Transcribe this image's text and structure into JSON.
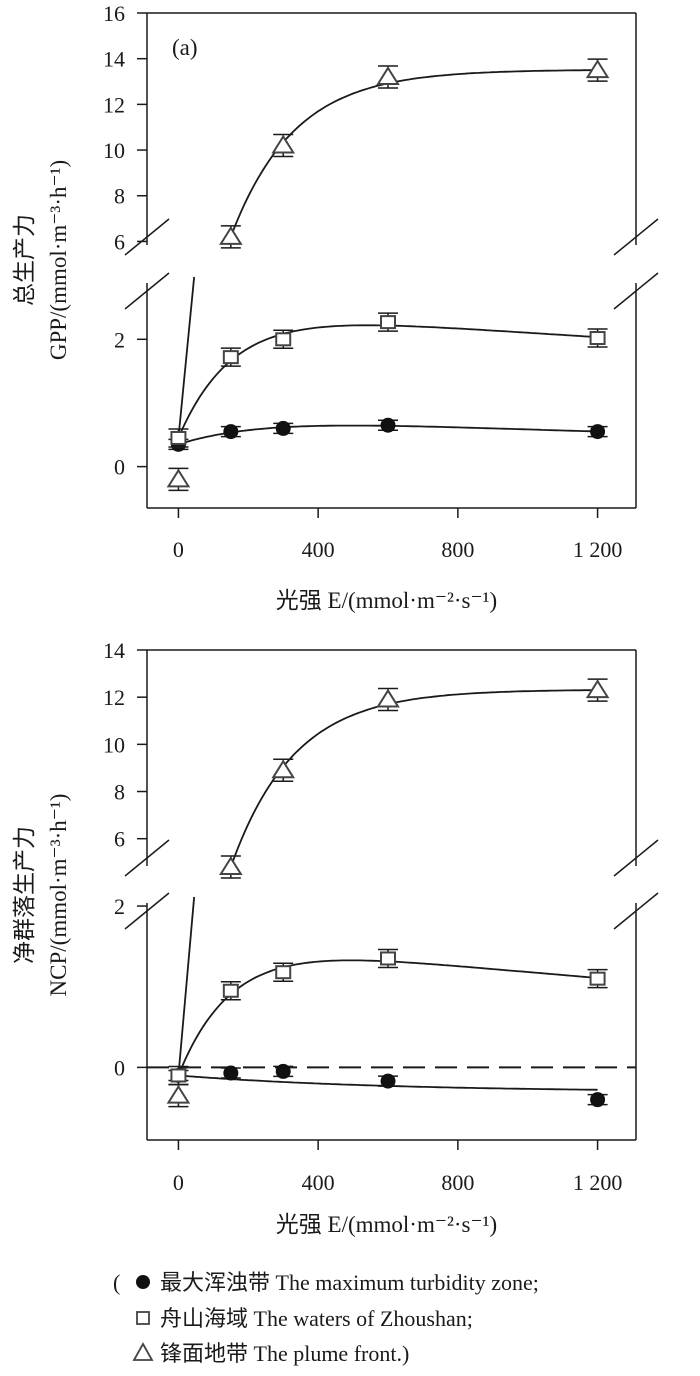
{
  "chart_data": [
    {
      "type": "scatter",
      "panel_label": "(a)",
      "xlabel": "光强 E/(mmol·m⁻²·s⁻¹)",
      "ylabel_cn": "总生产力",
      "ylabel_en": "GPP/(mmol·m⁻³·h⁻¹)",
      "x_ticks": [
        "0",
        "400",
        "800",
        "1 200"
      ],
      "y_ticks_upper": [
        "6",
        "8",
        "10",
        "12",
        "14",
        "16"
      ],
      "y_ticks_lower": [
        "0",
        "2"
      ],
      "xlim": [
        -90,
        1310
      ],
      "ylim_lower": [
        -0.65,
        2.9
      ],
      "ylim_upper": [
        5.8,
        16
      ],
      "axis_break": true,
      "dashed_zero_line": false,
      "series": [
        {
          "key": "turbidity",
          "marker": "filled-circle",
          "x": [
            0,
            150,
            300,
            600,
            1200
          ],
          "y": [
            0.35,
            0.55,
            0.6,
            0.65,
            0.55
          ]
        },
        {
          "key": "zhoushan",
          "marker": "open-square",
          "x": [
            0,
            150,
            300,
            600,
            1200
          ],
          "y": [
            0.45,
            1.72,
            2.0,
            2.27,
            2.02
          ]
        },
        {
          "key": "plume",
          "marker": "open-triangle",
          "x": [
            0,
            150,
            300,
            600,
            1200
          ],
          "y": [
            -0.2,
            6.2,
            10.2,
            13.2,
            13.5
          ]
        }
      ]
    },
    {
      "type": "scatter",
      "xlabel": "光强 E/(mmol·m⁻²·s⁻¹)",
      "ylabel_cn": "净群落生产力",
      "ylabel_en": "NCP/(mmol·m⁻³·h⁻¹)",
      "x_ticks": [
        "0",
        "400",
        "800",
        "1 200"
      ],
      "y_ticks_upper": [
        "6",
        "8",
        "10",
        "12",
        "14"
      ],
      "y_ticks_lower": [
        "0",
        "2"
      ],
      "xlim": [
        -90,
        1310
      ],
      "ylim_lower": [
        -0.9,
        2.05
      ],
      "ylim_upper": [
        4.8,
        14
      ],
      "axis_break": true,
      "dashed_zero_line": true,
      "series": [
        {
          "key": "turbidity",
          "marker": "filled-circle",
          "x": [
            0,
            150,
            300,
            600,
            1200
          ],
          "y": [
            -0.1,
            -0.07,
            -0.05,
            -0.17,
            -0.4
          ]
        },
        {
          "key": "zhoushan",
          "marker": "open-square",
          "x": [
            0,
            150,
            300,
            600,
            1200
          ],
          "y": [
            -0.1,
            0.95,
            1.18,
            1.35,
            1.1
          ]
        },
        {
          "key": "plume",
          "marker": "open-triangle",
          "x": [
            0,
            150,
            300,
            600,
            1200
          ],
          "y": [
            -0.35,
            4.8,
            8.9,
            11.9,
            12.3
          ]
        }
      ]
    }
  ],
  "legend": {
    "open_paren": "(",
    "items": [
      {
        "key": "turbidity",
        "marker": "filled-circle",
        "label": "最大浑浊带 The maximum turbidity zone;"
      },
      {
        "key": "zhoushan",
        "marker": "open-square",
        "label": "舟山海域 The waters of Zhoushan;"
      },
      {
        "key": "plume",
        "marker": "open-triangle",
        "label": "锋面地带 The plume front.)"
      }
    ]
  },
  "colors": {
    "axis": "#1a1a1a",
    "curve": "#1a1a1a",
    "marker_fill": "#111111",
    "open_marker_stroke": "#444444"
  }
}
